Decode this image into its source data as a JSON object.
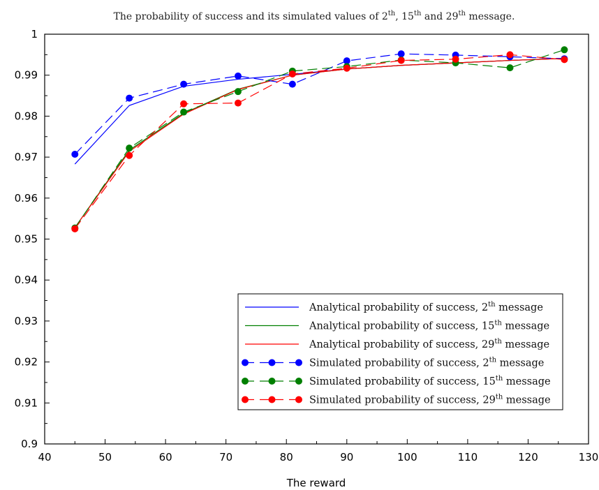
{
  "chart_data": {
    "type": "line",
    "title": "The probability of success and its simulated values of 2^th, 15^th and 29^th message.",
    "title_parts": {
      "prefix": "The probability of success and its simulated values of ",
      "n1": "2",
      "n2": "15",
      "n3": "29",
      "sup": "th",
      "sep1": ", ",
      "sep2": " and ",
      "suffix": " message."
    },
    "xlabel": "The reward",
    "ylabel": "",
    "xlim": [
      40,
      130
    ],
    "ylim": [
      0.9,
      1.0
    ],
    "xticks": [
      "40",
      "50",
      "60",
      "70",
      "80",
      "90",
      "100",
      "110",
      "120",
      "130"
    ],
    "yticks": [
      "0.9",
      "0.91",
      "0.92",
      "0.93",
      "0.94",
      "0.95",
      "0.96",
      "0.97",
      "0.98",
      "0.99",
      "1"
    ],
    "grid": false,
    "legend_position": "lower-right",
    "x": [
      45,
      54,
      63,
      72,
      81,
      90,
      99,
      108,
      117,
      126
    ],
    "series": [
      {
        "name": "Analytical probability of success, 2th message",
        "legend": {
          "prefix": "Analytical probability of success, ",
          "num": "2",
          "sup": "th",
          "suffix": " message"
        },
        "style": "solid",
        "markers": false,
        "color": "#0000ff",
        "values": [
          0.9683,
          0.9826,
          0.9873,
          0.989,
          0.9902,
          0.9915,
          0.9924,
          0.993,
          0.9936,
          0.9941
        ]
      },
      {
        "name": "Analytical probability of success, 15th message",
        "legend": {
          "prefix": "Analytical probability of success, ",
          "num": "15",
          "sup": "th",
          "suffix": " message"
        },
        "style": "solid",
        "markers": false,
        "color": "#007f00",
        "values": [
          0.9528,
          0.9717,
          0.9807,
          0.9866,
          0.99,
          0.9915,
          0.9924,
          0.993,
          0.9936,
          0.9941
        ]
      },
      {
        "name": "Analytical probability of success, 29th message",
        "legend": {
          "prefix": "Analytical probability of success, ",
          "num": "29",
          "sup": "th",
          "suffix": " message"
        },
        "style": "solid",
        "markers": false,
        "color": "#ff0000",
        "values": [
          0.9528,
          0.9714,
          0.9805,
          0.9865,
          0.99,
          0.9915,
          0.9924,
          0.993,
          0.9936,
          0.9941
        ]
      },
      {
        "name": "Simulated probability of success, 2th message",
        "legend": {
          "prefix": "Simulated probability of success, ",
          "num": "2",
          "sup": "th",
          "suffix": " message"
        },
        "style": "dashed",
        "markers": true,
        "color": "#0000ff",
        "values": [
          0.9707,
          0.9844,
          0.9878,
          0.9898,
          0.9878,
          0.9935,
          0.9952,
          0.9949,
          0.9945,
          0.994
        ]
      },
      {
        "name": "Simulated probability of success, 15th message",
        "legend": {
          "prefix": "Simulated probability of success, ",
          "num": "15",
          "sup": "th",
          "suffix": " message"
        },
        "style": "dashed",
        "markers": true,
        "color": "#007f00",
        "values": [
          0.9527,
          0.9722,
          0.981,
          0.986,
          0.991,
          0.9921,
          0.9937,
          0.993,
          0.9918,
          0.9962
        ]
      },
      {
        "name": "Simulated probability of success, 29th message",
        "legend": {
          "prefix": "Simulated probability of success, ",
          "num": "29",
          "sup": "th",
          "suffix": " message"
        },
        "style": "dashed",
        "markers": true,
        "color": "#ff0000",
        "values": [
          0.9525,
          0.9704,
          0.983,
          0.9832,
          0.9903,
          0.9917,
          0.9936,
          0.9939,
          0.995,
          0.9938
        ]
      }
    ]
  }
}
